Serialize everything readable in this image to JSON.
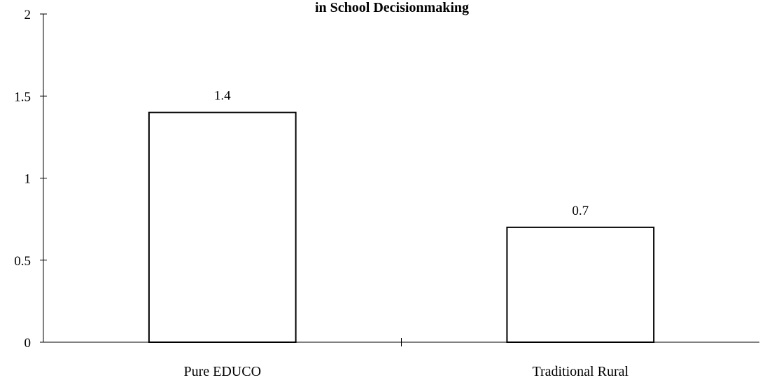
{
  "chart_data": {
    "type": "bar",
    "title": "in School Decisionmaking",
    "xlabel": "",
    "ylabel": "",
    "categories": [
      "Pure EDUCO",
      "Traditional Rural"
    ],
    "values": [
      1.4,
      0.7
    ],
    "data_labels": [
      "1.4",
      "0.7"
    ],
    "ylim": [
      0,
      2
    ],
    "yticks": [
      0,
      0.5,
      1,
      1.5,
      2
    ],
    "ytick_labels": [
      "0",
      "0.5",
      "1",
      "1.5",
      "2"
    ],
    "grid": false,
    "legend": "none",
    "bar_fill": "#ffffff",
    "bar_stroke": "#000000"
  }
}
